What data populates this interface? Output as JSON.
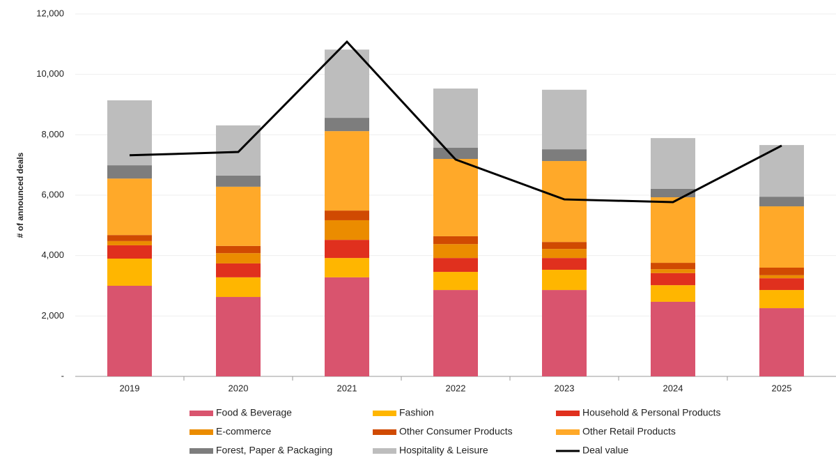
{
  "chart_data": {
    "type": "bar",
    "stacked": true,
    "y_label": "# of announced deals",
    "categories": [
      "2019",
      "2020",
      "2021",
      "2022",
      "2023",
      "2024",
      "2025"
    ],
    "ylim": [
      0,
      12000
    ],
    "yticks": [
      {
        "value": 0,
        "label": "-"
      },
      {
        "value": 2000,
        "label": "2,000"
      },
      {
        "value": 4000,
        "label": "4,000"
      },
      {
        "value": 6000,
        "label": "6,000"
      },
      {
        "value": 8000,
        "label": "8,000"
      },
      {
        "value": 10000,
        "label": "10,000"
      },
      {
        "value": 12000,
        "label": "12,000"
      }
    ],
    "grid": true,
    "series": [
      {
        "name": "Food & Beverage",
        "color": "#d9546e",
        "values": [
          3000,
          2630,
          3280,
          2860,
          2860,
          2470,
          2260
        ]
      },
      {
        "name": "Fashion",
        "color": "#ffb600",
        "values": [
          900,
          650,
          640,
          600,
          670,
          550,
          600
        ]
      },
      {
        "name": "Household & Personal Products",
        "color": "#e0301e",
        "values": [
          440,
          460,
          600,
          460,
          390,
          400,
          390
        ]
      },
      {
        "name": "E-commerce",
        "color": "#eb8c00",
        "values": [
          140,
          340,
          650,
          460,
          300,
          130,
          100
        ]
      },
      {
        "name": "Other Consumer Products",
        "color": "#d04a02",
        "values": [
          200,
          240,
          320,
          260,
          230,
          210,
          250
        ]
      },
      {
        "name": "Other Retail Products",
        "color": "#ffa929",
        "values": [
          1870,
          1960,
          2630,
          2560,
          2680,
          2170,
          2030
        ]
      },
      {
        "name": "Forest, Paper & Packaging",
        "color": "#7d7d7d",
        "values": [
          440,
          370,
          440,
          370,
          390,
          280,
          320
        ]
      },
      {
        "name": "Hospitality & Leisure",
        "color": "#bdbdbd",
        "values": [
          2150,
          1660,
          2260,
          1960,
          1970,
          1680,
          1710
        ]
      },
      {
        "name": "Deal value",
        "color": "#000000",
        "type": "line",
        "values": [
          7320,
          7430,
          11080,
          7180,
          5860,
          5770,
          7640
        ]
      }
    ]
  }
}
